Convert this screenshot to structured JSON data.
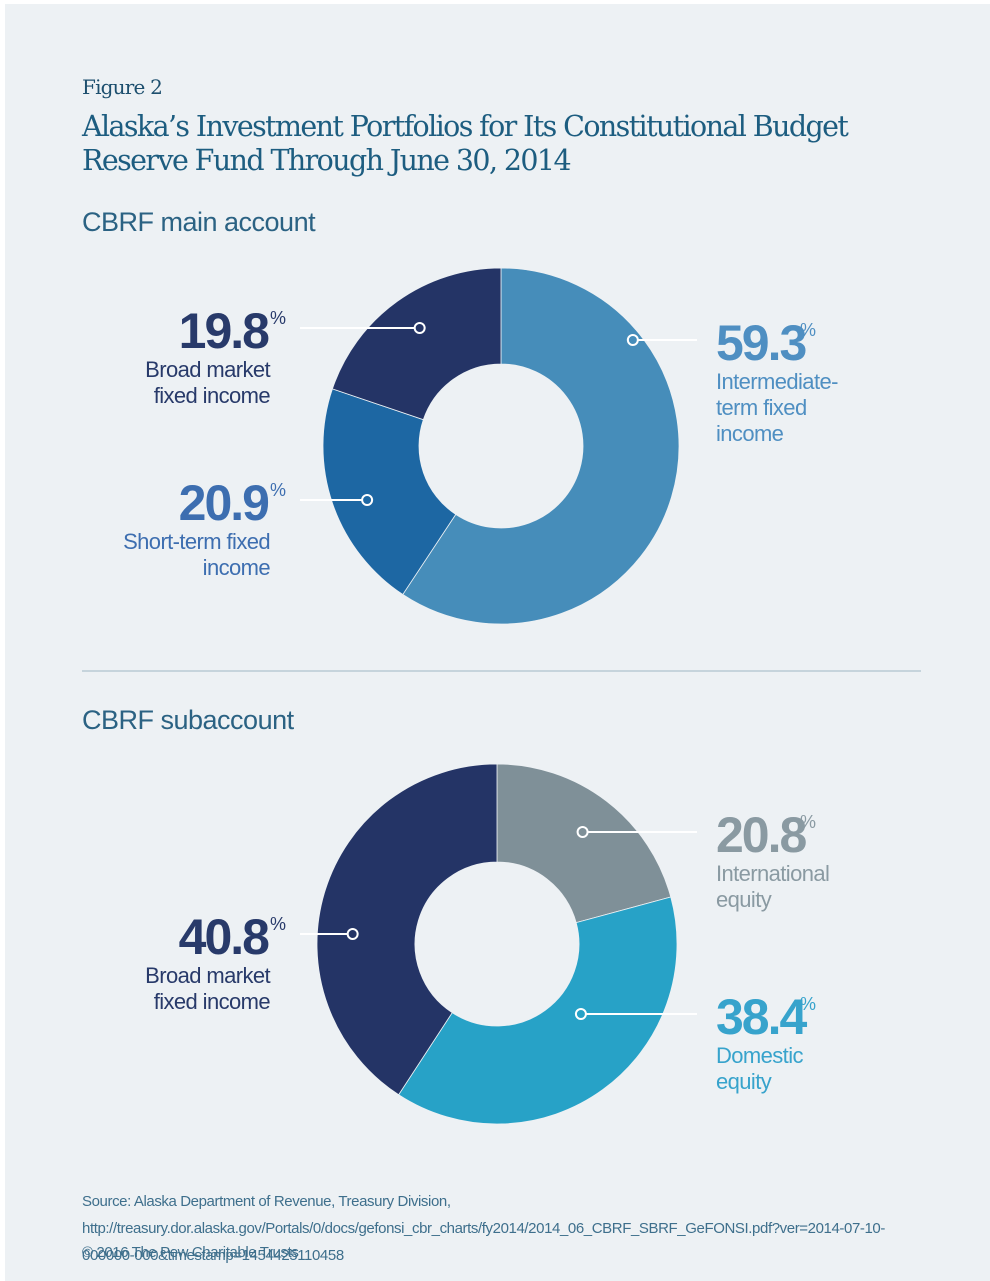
{
  "figure_label": "Figure 2",
  "title": "Alaska’s Investment Portfolios for Its Constitutional Budget Reserve Fund Through June 30, 2014",
  "source": "Source: Alaska Department of Revenue, Treasury Division, http://treasury.dor.alaska.gov/Portals/0/docs/gefonsi_cbr_charts/fy2014/2014_06_CBRF_SBRF_GeFONSI.pdf?ver=2014-07-10-000000-000&timestamp=1454425110458",
  "copyright": "© 2016 The Pew Charitable Trusts",
  "chart_data": [
    {
      "type": "pie",
      "variant": "donut",
      "title": "CBRF main account",
      "unit": "%",
      "start": "top, clockwise",
      "slices": [
        {
          "label": "Intermediate-term fixed income",
          "label_lines": [
            "Intermediate-",
            "term fixed",
            "income"
          ],
          "value": 59.3,
          "display": "59.3",
          "color": "#468dba",
          "text_color": "#4f8fc2",
          "label_side": "right"
        },
        {
          "label": "Short-term fixed income",
          "label_lines": [
            "Short-term fixed",
            "income"
          ],
          "value": 20.9,
          "display": "20.9",
          "color": "#1d67a3",
          "text_color": "#3d6eb0",
          "label_side": "left"
        },
        {
          "label": "Broad market fixed income",
          "label_lines": [
            "Broad market",
            "fixed income"
          ],
          "value": 19.8,
          "display": "19.8",
          "color": "#243466",
          "text_color": "#283a6a",
          "label_side": "left"
        }
      ]
    },
    {
      "type": "pie",
      "variant": "donut",
      "title": "CBRF subaccount",
      "unit": "%",
      "start": "top, clockwise",
      "slices": [
        {
          "label": "International equity",
          "label_lines": [
            "International",
            "equity"
          ],
          "value": 20.8,
          "display": "20.8",
          "color": "#7f9098",
          "text_color": "#8a9aa2",
          "label_side": "right"
        },
        {
          "label": "Domestic equity",
          "label_lines": [
            "Domestic",
            "equity"
          ],
          "value": 38.4,
          "display": "38.4",
          "color": "#27a2c7",
          "text_color": "#37a3cc",
          "label_side": "right"
        },
        {
          "label": "Broad market fixed income",
          "label_lines": [
            "Broad market",
            "fixed income"
          ],
          "value": 40.8,
          "display": "40.8",
          "color": "#243466",
          "text_color": "#283a6a",
          "label_side": "left"
        }
      ]
    }
  ]
}
